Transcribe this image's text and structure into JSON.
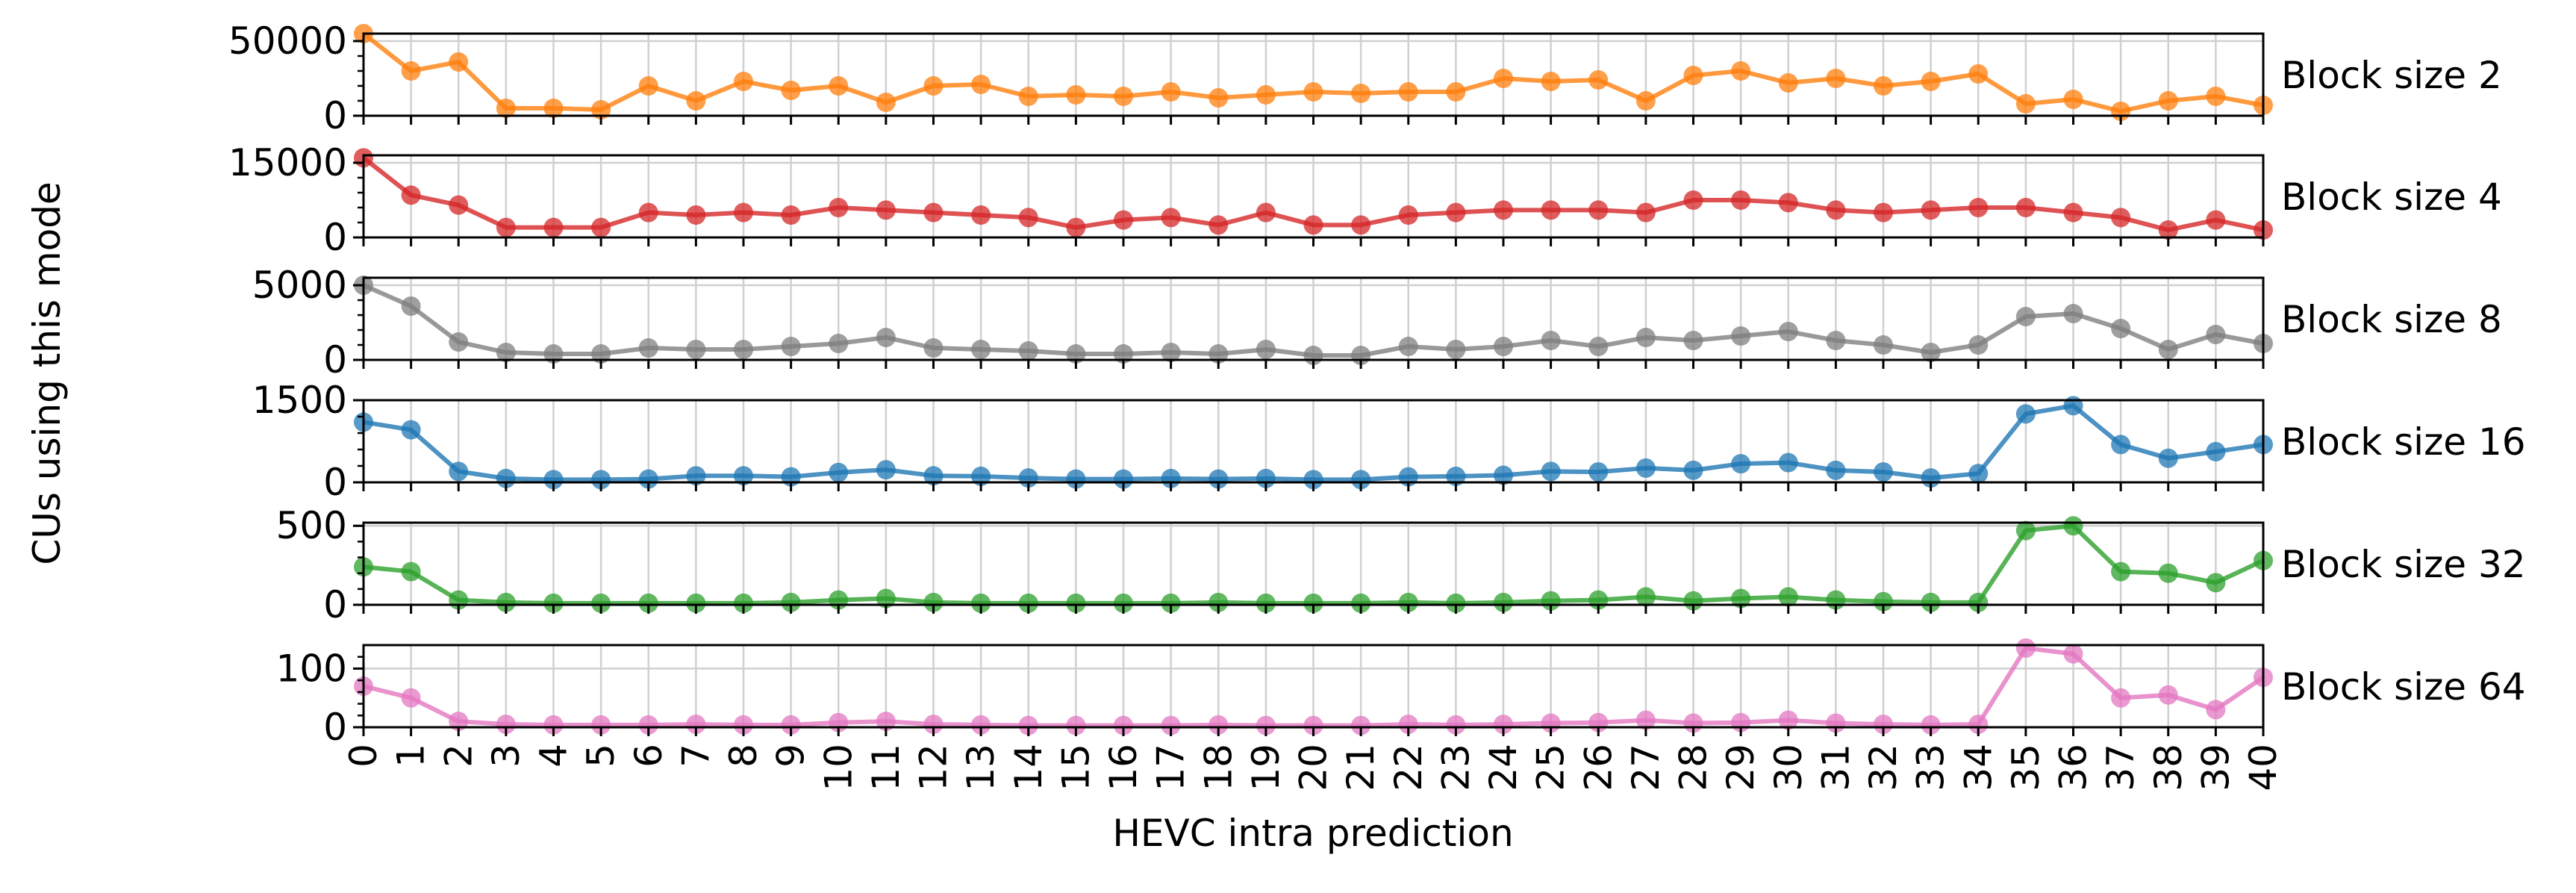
{
  "chart_data": {
    "type": "line",
    "xlabel": "HEVC intra prediction",
    "ylabel": "CUs using this mode",
    "x": [
      0,
      1,
      2,
      3,
      4,
      5,
      6,
      7,
      8,
      9,
      10,
      11,
      12,
      13,
      14,
      15,
      16,
      17,
      18,
      19,
      20,
      21,
      22,
      23,
      24,
      25,
      26,
      27,
      28,
      29,
      30,
      31,
      32,
      33,
      34,
      35,
      36,
      37,
      38,
      39,
      40
    ],
    "xlim": [
      0,
      40
    ],
    "grid": true,
    "panels": [
      {
        "label": "Block size 2",
        "color": "#ff7f0e",
        "ylim": [
          0,
          55000
        ],
        "yticks": [
          0,
          50000
        ],
        "values": [
          55000,
          30000,
          36000,
          5000,
          5000,
          4000,
          20000,
          10000,
          23000,
          17000,
          20000,
          9000,
          20000,
          21000,
          13000,
          14000,
          13000,
          16000,
          12000,
          14000,
          16000,
          15000,
          16000,
          16000,
          25000,
          23000,
          24000,
          10000,
          27000,
          30000,
          22000,
          25000,
          20000,
          23000,
          28000,
          8000,
          11000,
          3000,
          10000,
          13000,
          7000
        ]
      },
      {
        "label": "Block size 4",
        "color": "#d62728",
        "ylim": [
          0,
          16500
        ],
        "yticks": [
          0,
          15000
        ],
        "values": [
          16000,
          8500,
          6500,
          2000,
          2000,
          2000,
          5000,
          4500,
          5000,
          4500,
          6000,
          5500,
          5000,
          4500,
          4000,
          2000,
          3500,
          4000,
          2500,
          5000,
          2500,
          2500,
          4500,
          5000,
          5500,
          5500,
          5500,
          5000,
          7500,
          7500,
          7000,
          5500,
          5000,
          5500,
          6000,
          6000,
          5000,
          4000,
          1500,
          3500,
          1500
        ]
      },
      {
        "label": "Block size 8",
        "color": "#7f7f7f",
        "ylim": [
          0,
          5500
        ],
        "yticks": [
          0,
          5000
        ],
        "values": [
          5000,
          3600,
          1200,
          500,
          400,
          400,
          800,
          700,
          700,
          900,
          1100,
          1500,
          800,
          700,
          600,
          400,
          400,
          500,
          400,
          700,
          300,
          300,
          900,
          700,
          900,
          1300,
          900,
          1500,
          1300,
          1600,
          1900,
          1300,
          1000,
          500,
          1000,
          2900,
          3100,
          2100,
          700,
          1700,
          1100
        ]
      },
      {
        "label": "Block size 16",
        "color": "#1f77b4",
        "ylim": [
          0,
          1500
        ],
        "yticks": [
          0,
          1500
        ],
        "values": [
          1100,
          960,
          200,
          70,
          50,
          50,
          60,
          120,
          120,
          100,
          180,
          230,
          120,
          110,
          80,
          60,
          60,
          70,
          60,
          70,
          50,
          50,
          100,
          110,
          130,
          200,
          190,
          260,
          220,
          340,
          360,
          220,
          190,
          80,
          160,
          1250,
          1400,
          690,
          440,
          560,
          690
        ]
      },
      {
        "label": "Block size 32",
        "color": "#2ca02c",
        "ylim": [
          0,
          520
        ],
        "yticks": [
          0,
          500
        ],
        "values": [
          240,
          210,
          30,
          15,
          10,
          10,
          10,
          10,
          10,
          15,
          30,
          40,
          15,
          10,
          10,
          10,
          10,
          10,
          15,
          10,
          10,
          10,
          15,
          10,
          15,
          25,
          30,
          50,
          25,
          40,
          50,
          30,
          20,
          15,
          15,
          470,
          500,
          210,
          200,
          140,
          280
        ]
      },
      {
        "label": "Block size 64",
        "color": "#e377c2",
        "ylim": [
          0,
          140
        ],
        "yticks": [
          0,
          100
        ],
        "values": [
          70,
          50,
          10,
          5,
          4,
          4,
          4,
          5,
          4,
          4,
          8,
          10,
          5,
          4,
          3,
          3,
          3,
          3,
          4,
          3,
          3,
          3,
          5,
          4,
          5,
          7,
          8,
          12,
          7,
          8,
          12,
          7,
          5,
          4,
          5,
          135,
          125,
          50,
          55,
          30,
          85
        ]
      }
    ]
  }
}
